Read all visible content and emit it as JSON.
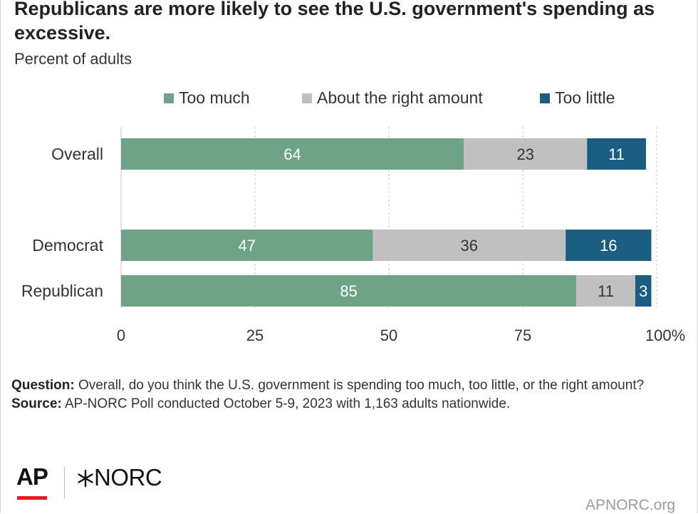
{
  "title": "Republicans are more likely to see the U.S. government's spending as excessive.",
  "subtitle": "Percent of adults",
  "legend": [
    {
      "label": "Too much",
      "color": "#6fa386"
    },
    {
      "label": "About the right amount",
      "color": "#c0c0c0"
    },
    {
      "label": "Too little",
      "color": "#1b5d80"
    }
  ],
  "chart_data": {
    "type": "bar",
    "orientation": "horizontal",
    "stacked": true,
    "categories": [
      "Overall",
      "Democrat",
      "Republican"
    ],
    "series": [
      {
        "name": "Too much",
        "values": [
          64,
          47,
          85
        ],
        "color": "#6fa386",
        "label_color": "#ffffff"
      },
      {
        "name": "About the right amount",
        "values": [
          23,
          36,
          11
        ],
        "color": "#c0c0c0",
        "label_color": "#333333"
      },
      {
        "name": "Too little",
        "values": [
          11,
          16,
          3
        ],
        "color": "#1b5d80",
        "label_color": "#ffffff"
      }
    ],
    "xlim": [
      0,
      100
    ],
    "xticks": [
      "0",
      "25",
      "50",
      "75",
      "100%"
    ],
    "grid": "vertical-dashed",
    "legend_position": "top"
  },
  "footnote": {
    "question_label": "Question:",
    "question_text": "Overall, do you think the U.S. government is spending too much, too little, or the right amount?",
    "source_label": "Source:",
    "source_text": "AP-NORC Poll conducted October 5-9, 2023 with 1,163 adults nationwide."
  },
  "branding": {
    "ap_logo": "AP",
    "norc_icon": "asterisk-icon",
    "norc_logo": "NORC",
    "url": "APNORC.org"
  }
}
